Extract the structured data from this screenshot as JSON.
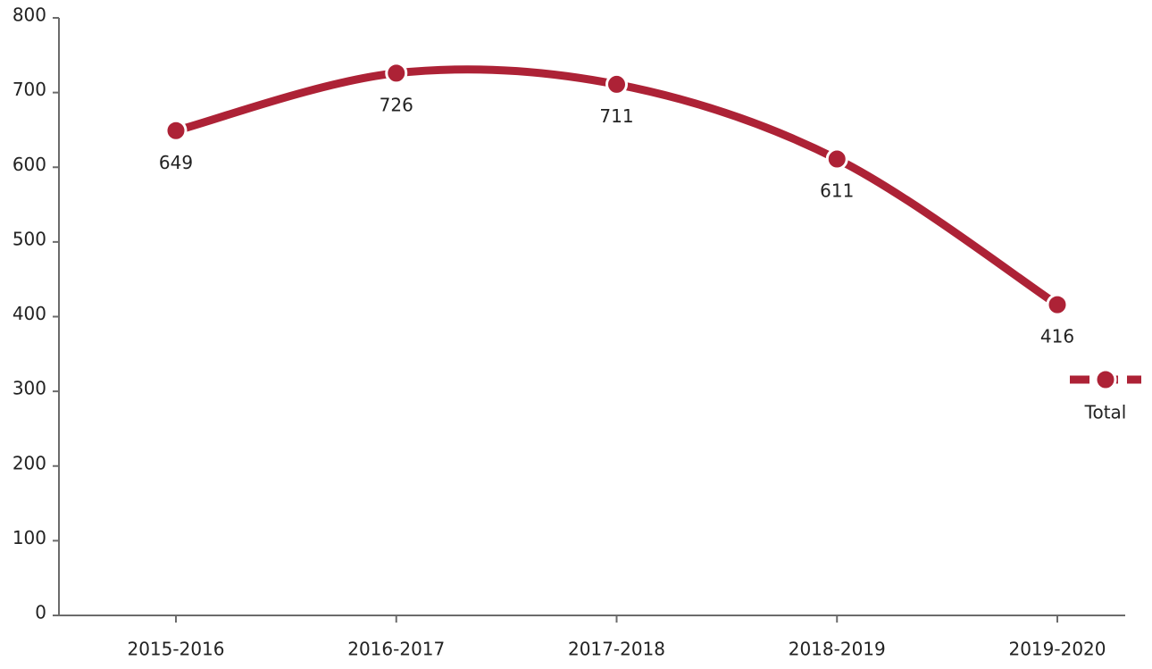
{
  "chart_data": {
    "type": "line",
    "categories": [
      "2015-2016",
      "2016-2017",
      "2017-2018",
      "2018-2019",
      "2019-2020"
    ],
    "series": [
      {
        "name": "Total",
        "color": "#ad2236",
        "values": [
          649,
          726,
          711,
          611,
          416
        ]
      }
    ],
    "ylim": [
      0,
      800
    ],
    "yticks": [
      0,
      100,
      200,
      300,
      400,
      500,
      600,
      700,
      800
    ],
    "smooth": true,
    "legend": "right"
  }
}
